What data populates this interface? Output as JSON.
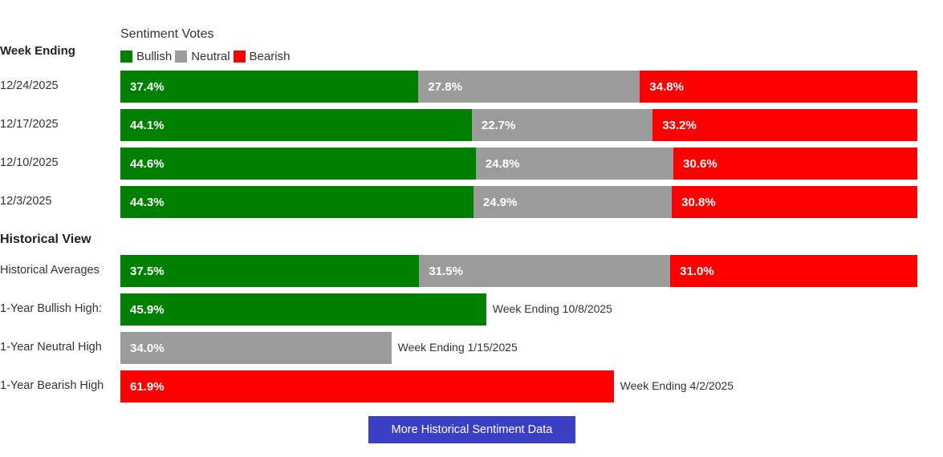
{
  "chart_data": {
    "type": "bar",
    "title": "Sentiment Votes",
    "row_heading": "Week Ending",
    "legend": [
      {
        "name": "Bullish",
        "color": "#008000"
      },
      {
        "name": "Neutral",
        "color": "#9b9b9b"
      },
      {
        "name": "Bearish",
        "color": "#ff0000"
      }
    ],
    "weeks": [
      {
        "label": "12/24/2025",
        "values": [
          37.4,
          27.8,
          34.8
        ],
        "display": [
          "37.4%",
          "27.8%",
          "34.8%"
        ]
      },
      {
        "label": "12/17/2025",
        "values": [
          44.1,
          22.7,
          33.2
        ],
        "display": [
          "44.1%",
          "22.7%",
          "33.2%"
        ]
      },
      {
        "label": "12/10/2025",
        "values": [
          44.6,
          24.8,
          30.6
        ],
        "display": [
          "44.6%",
          "24.8%",
          "30.6%"
        ]
      },
      {
        "label": "12/3/2025",
        "values": [
          44.3,
          24.9,
          30.8
        ],
        "display": [
          "44.3%",
          "24.9%",
          "30.8%"
        ]
      }
    ],
    "historical_heading": "Historical View",
    "historical_averages": {
      "label": "Historical Averages",
      "values": [
        37.5,
        31.5,
        31.0
      ],
      "display": [
        "37.5%",
        "31.5%",
        "31.0%"
      ]
    },
    "highs": [
      {
        "label": "1-Year Bullish High:",
        "value": 45.9,
        "display": "45.9%",
        "note": "Week Ending 10/8/2025",
        "series": 0
      },
      {
        "label": "1-Year Neutral High",
        "value": 34.0,
        "display": "34.0%",
        "note": "Week Ending 1/15/2025",
        "series": 1
      },
      {
        "label": "1-Year Bearish High",
        "value": 61.9,
        "display": "61.9%",
        "note": "Week Ending 4/2/2025",
        "series": 2
      }
    ],
    "xlim": [
      0,
      100
    ]
  },
  "button": {
    "label": "More Historical Sentiment Data"
  }
}
